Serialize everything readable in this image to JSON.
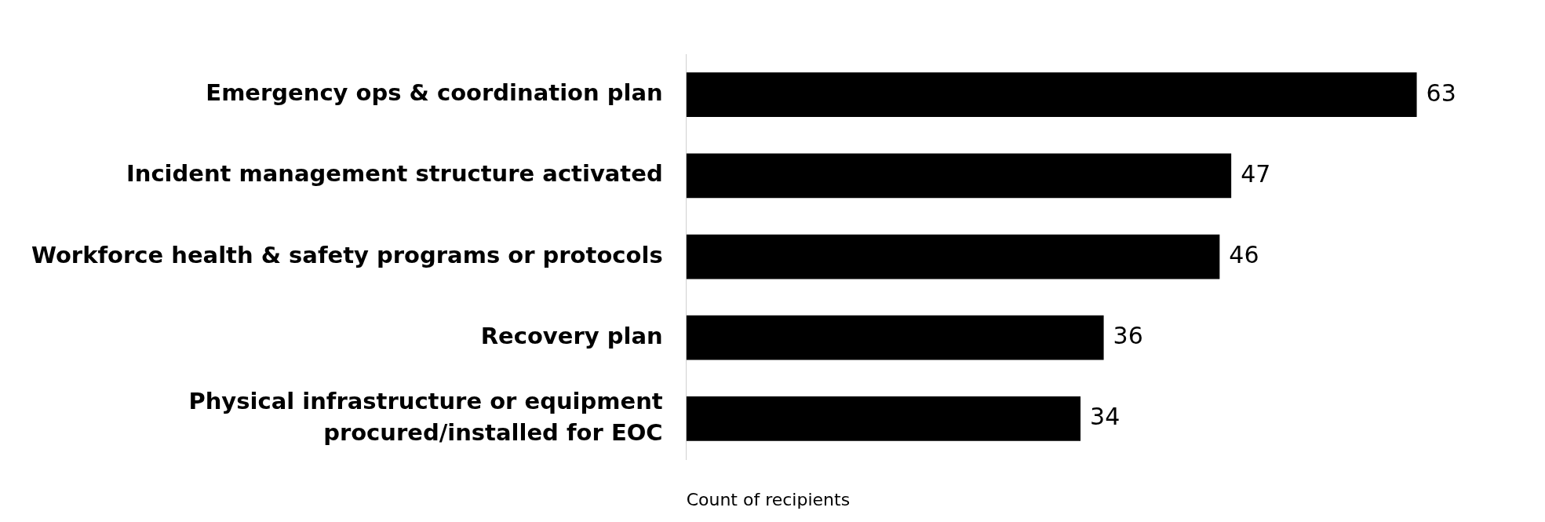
{
  "chart_data": {
    "type": "bar",
    "orientation": "horizontal",
    "xlabel": "Count of recipients",
    "categories": [
      "Emergency ops & coordination plan",
      "Incident management structure activated",
      "Workforce health & safety programs or protocols",
      "Recovery plan",
      "Physical infrastructure or equipment\nprocured/installed for EOC"
    ],
    "values": [
      63,
      47,
      46,
      36,
      34
    ],
    "color": "#000000",
    "data_labels": true,
    "legend": false
  }
}
